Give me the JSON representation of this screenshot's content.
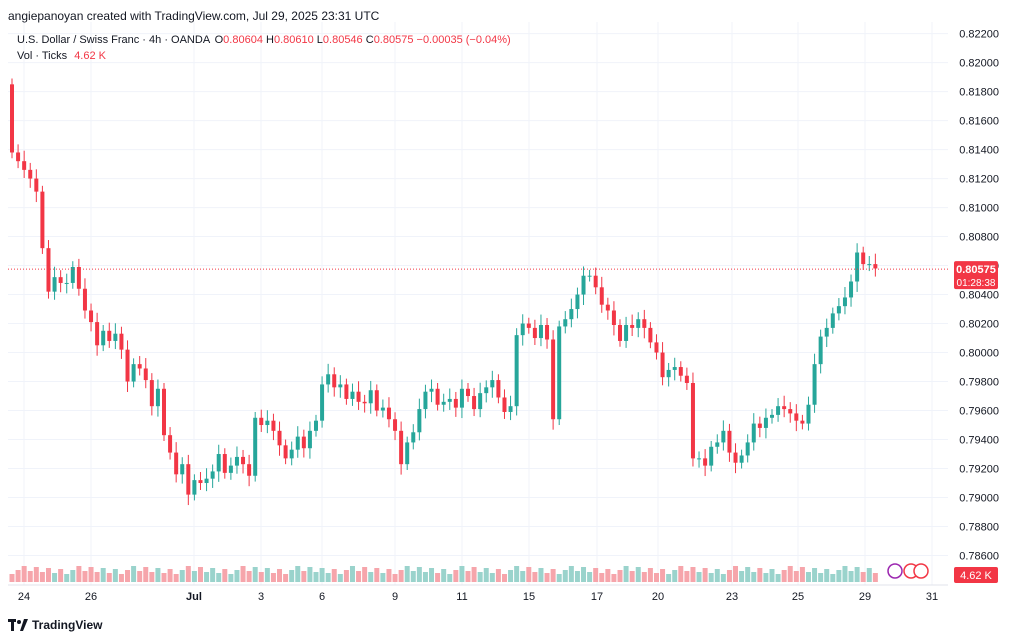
{
  "header": {
    "author_line": "angiepanoyan created with TradingView.com, Jul 29, 2025 23:31 UTC"
  },
  "legend": {
    "symbol": "U.S. Dollar / Swiss Franc · 4h · OANDA",
    "open_label": "O",
    "open": "0.80604",
    "high_label": "H",
    "high": "0.80610",
    "low_label": "L",
    "low": "0.80546",
    "close_label": "C",
    "close": "0.80575",
    "change": "−0.00035 (−0.04%)",
    "vol_label": "Vol · Ticks",
    "vol_value": "4.62 K"
  },
  "price_badge": {
    "price": "0.80575",
    "countdown": "01:28:38"
  },
  "volume_badge": "4.62 K",
  "footer": {
    "brand": "TradingView"
  },
  "colors": {
    "up": "#26a69a",
    "down": "#f23645",
    "up_vol": "#9ad3cc",
    "down_vol": "#f6a5ab",
    "grid": "#f0f3fa",
    "axis_text": "#131722"
  },
  "chart_data": {
    "type": "candlestick",
    "title": "U.S. Dollar / Swiss Franc · 4h · OANDA",
    "y_ticks": [
      "0.82200",
      "0.82000",
      "0.81800",
      "0.81600",
      "0.81400",
      "0.81200",
      "0.81000",
      "0.80800",
      "0.80600",
      "0.80400",
      "0.80200",
      "0.80000",
      "0.79800",
      "0.79600",
      "0.79400",
      "0.79200",
      "0.79000",
      "0.78800",
      "0.78600"
    ],
    "ylim": [
      0.785,
      0.8228
    ],
    "x_ticks": [
      "24",
      "26",
      "Jul",
      "3",
      "6",
      "9",
      "11",
      "15",
      "17",
      "20",
      "23",
      "25",
      "29",
      "31"
    ],
    "last_price": 0.80575,
    "volume_label": "Vol · Ticks",
    "last_volume": "4.62 K",
    "close": [
      0.8138,
      0.8132,
      0.8126,
      0.812,
      0.8111,
      0.8072,
      0.8042,
      0.8052,
      0.8048,
      0.8048,
      0.8059,
      0.8044,
      0.8029,
      0.8021,
      0.8005,
      0.8015,
      0.8008,
      0.8013,
      0.8002,
      0.798,
      0.7992,
      0.7989,
      0.7981,
      0.7963,
      0.7975,
      0.7943,
      0.7931,
      0.7916,
      0.7923,
      0.7902,
      0.7912,
      0.791,
      0.7913,
      0.7918,
      0.793,
      0.7917,
      0.7922,
      0.7928,
      0.7923,
      0.7915,
      0.7955,
      0.795,
      0.7953,
      0.7946,
      0.7936,
      0.7927,
      0.7933,
      0.7942,
      0.7934,
      0.7946,
      0.7953,
      0.7978,
      0.7985,
      0.7976,
      0.7978,
      0.7968,
      0.7973,
      0.7966,
      0.7965,
      0.7974,
      0.796,
      0.7962,
      0.7954,
      0.7946,
      0.7923,
      0.7938,
      0.7945,
      0.7961,
      0.7973,
      0.7975,
      0.7964,
      0.7966,
      0.7968,
      0.7962,
      0.7975,
      0.797,
      0.7961,
      0.7972,
      0.7976,
      0.7981,
      0.7969,
      0.7959,
      0.7963,
      0.8012,
      0.802,
      0.8017,
      0.801,
      0.8019,
      0.8009,
      0.7954,
      0.8018,
      0.8023,
      0.803,
      0.804,
      0.8053,
      0.8053,
      0.8045,
      0.8033,
      0.8029,
      0.8019,
      0.8008,
      0.8019,
      0.8017,
      0.8023,
      0.8017,
      0.8007,
      0.8,
      0.7983,
      0.7988,
      0.799,
      0.7984,
      0.7979,
      0.7927,
      0.7927,
      0.7922,
      0.7935,
      0.7938,
      0.7946,
      0.7931,
      0.7924,
      0.7929,
      0.7938,
      0.7951,
      0.7948,
      0.7955,
      0.7957,
      0.7963,
      0.7961,
      0.7958,
      0.7953,
      0.7951,
      0.7964,
      0.7992,
      0.8011,
      0.8017,
      0.8027,
      0.8032,
      0.8038,
      0.8049,
      0.8069,
      0.8061,
      0.8061,
      0.8058
    ],
    "note": "values are closing prices of each 4h candle, Jun 23 – Jul 29, 2025"
  }
}
